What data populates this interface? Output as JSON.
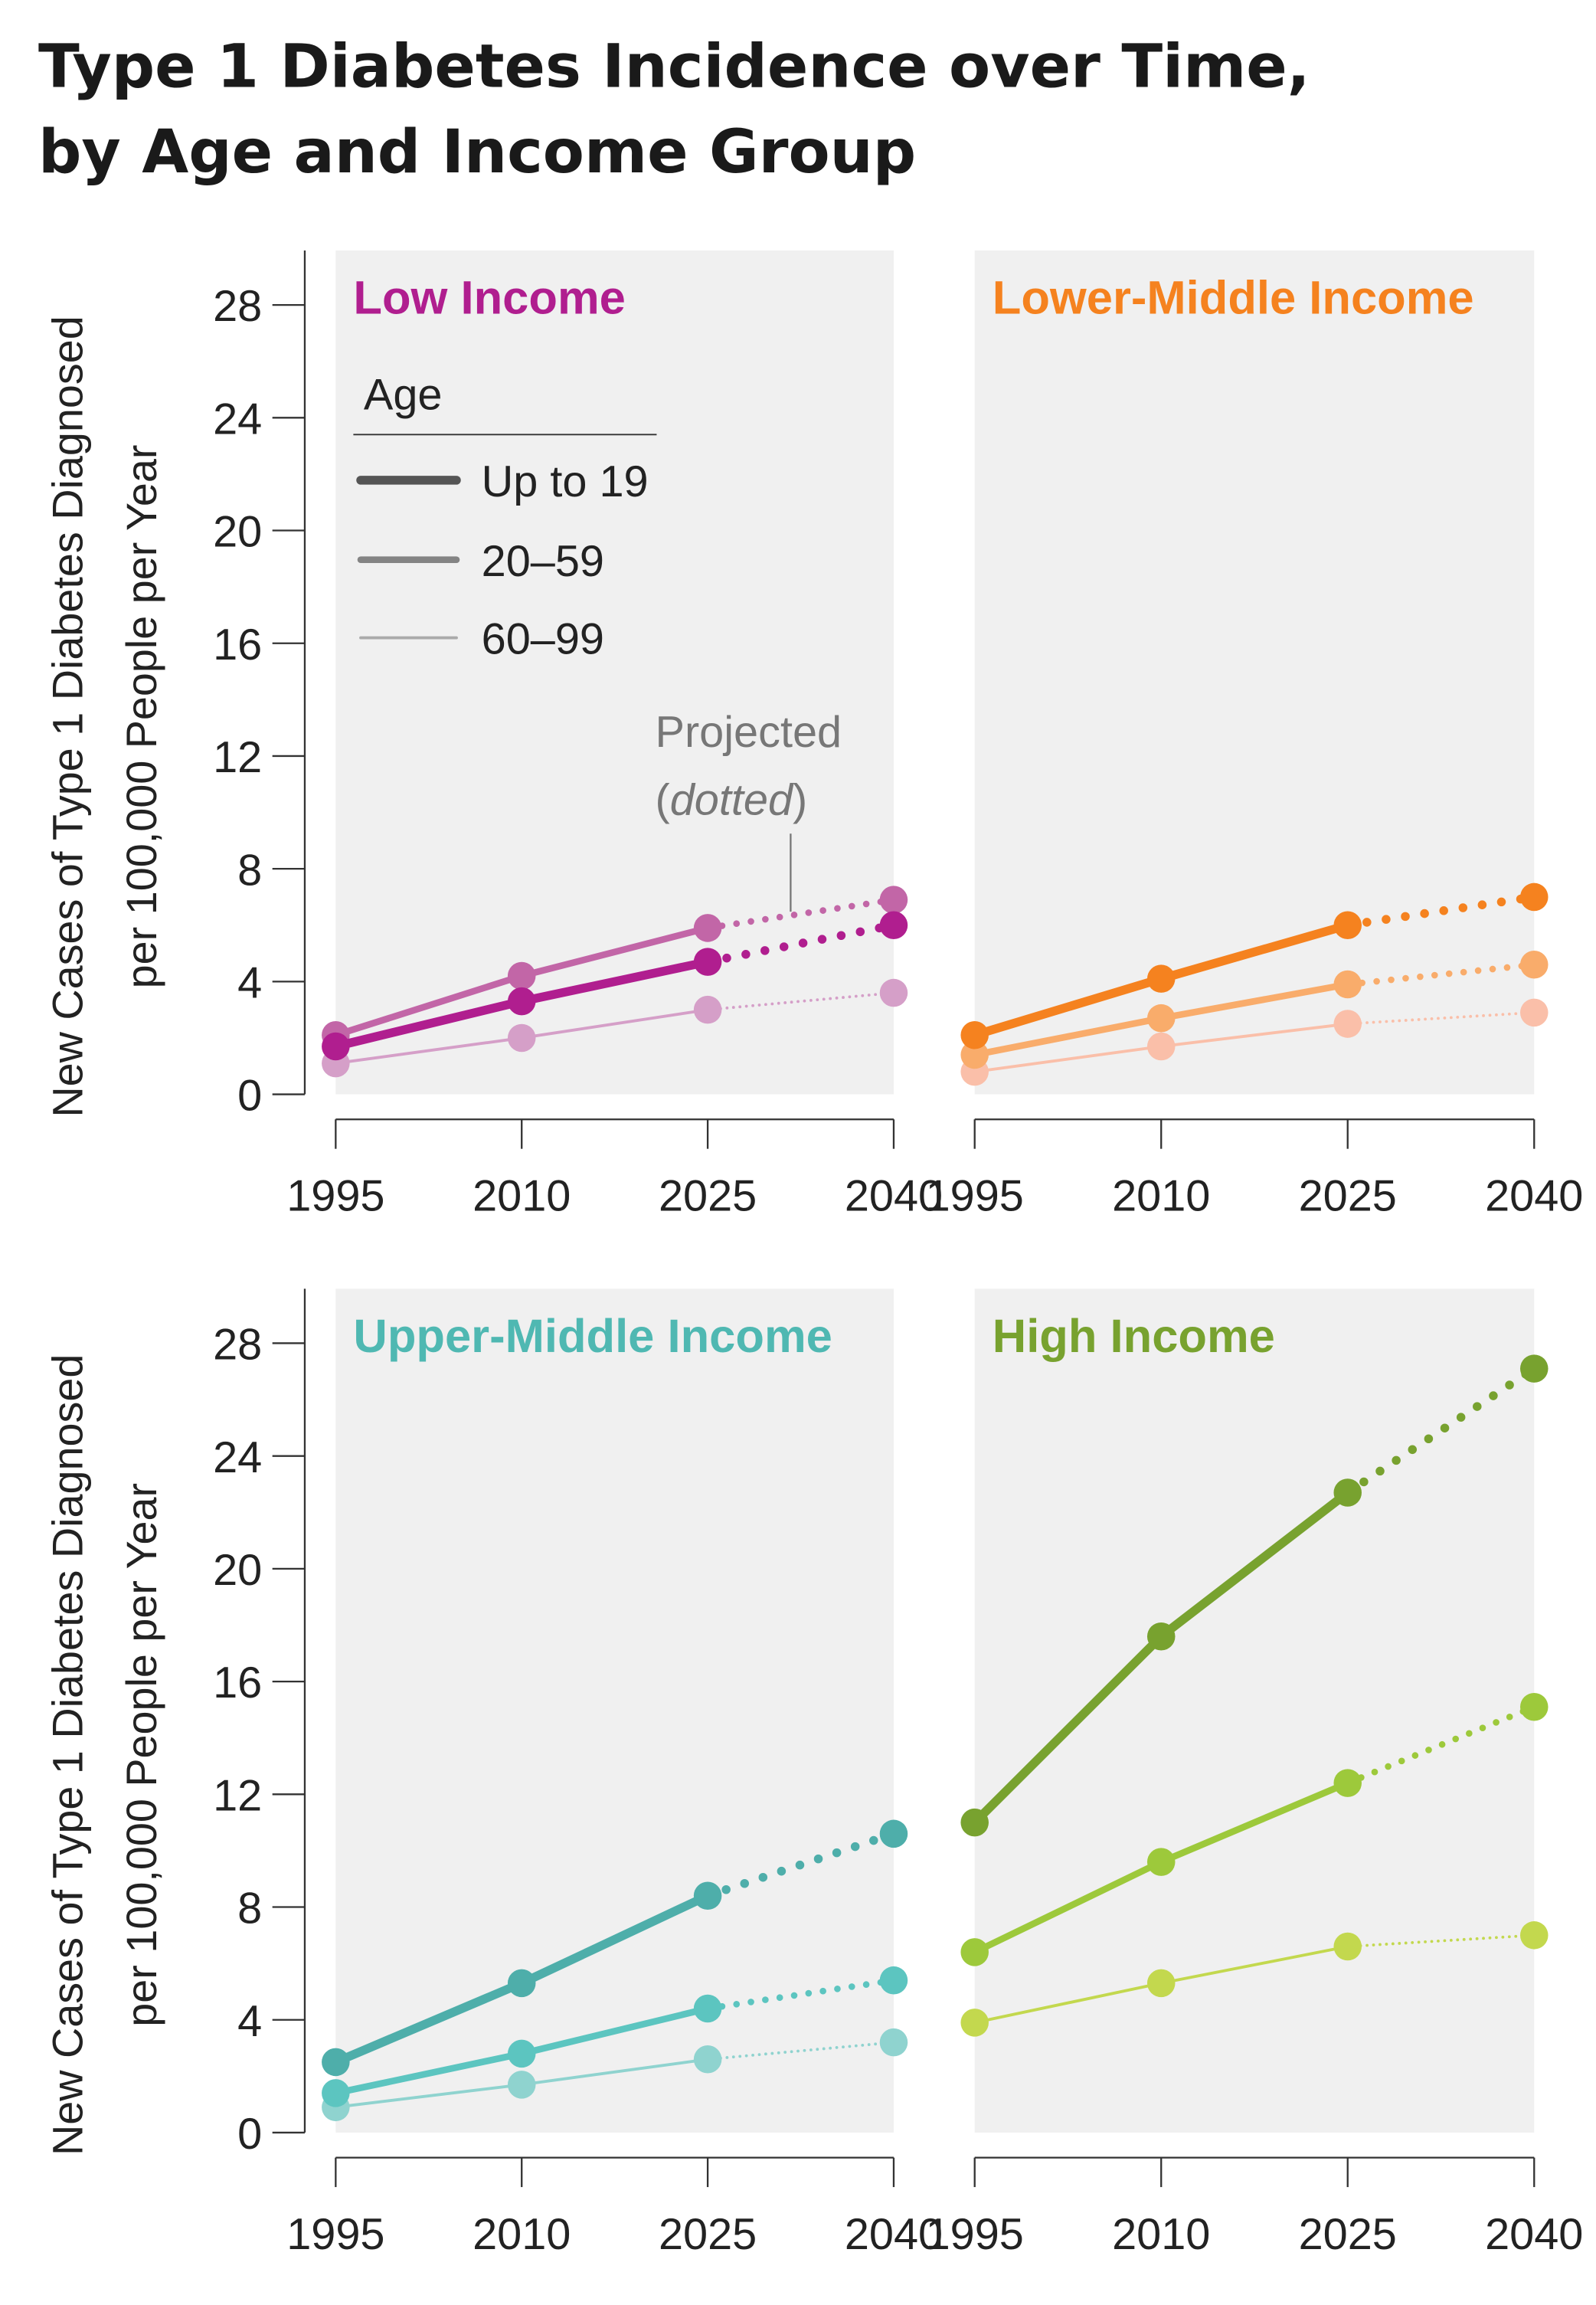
{
  "title_lines": [
    "Type 1 Diabetes Incidence over Time,",
    "by Age and Income Group"
  ],
  "chart_data": {
    "type": "line",
    "ylabel_lines": [
      "New Cases of Type 1 Diabetes Diagnosed",
      "per 100,000 People per Year"
    ],
    "x": [
      1995,
      2010,
      2025,
      2040
    ],
    "x_ticks": [
      "1995",
      "2010",
      "2025",
      "2040"
    ],
    "y_ticks": [
      "0",
      "4",
      "8",
      "12",
      "16",
      "20",
      "24",
      "28"
    ],
    "ylim": [
      0,
      30
    ],
    "projected_from": 2025,
    "legend": {
      "title": "Age",
      "entries": [
        "Up to 19",
        "20–59",
        "60–99"
      ],
      "legend_color": "#555555"
    },
    "annotation": {
      "line1": "Projected",
      "open": "(",
      "italic": "dotted",
      "close": ")"
    },
    "panels": [
      {
        "title": "Low Income",
        "color": "#b01e8f",
        "series": [
          {
            "name": "Up to 19",
            "color": "#b01e8f",
            "values": [
              1.7,
              3.3,
              4.7,
              6.0
            ]
          },
          {
            "name": "20–59",
            "color": "#c266a7",
            "values": [
              2.1,
              4.2,
              5.9,
              6.9
            ]
          },
          {
            "name": "60–99",
            "color": "#d59fc8",
            "values": [
              1.1,
              2.0,
              3.0,
              3.6
            ]
          }
        ]
      },
      {
        "title": "Lower-Middle Income",
        "color": "#f5821f",
        "series": [
          {
            "name": "Up to 19",
            "color": "#f5821f",
            "values": [
              2.1,
              4.1,
              6.0,
              7.0
            ]
          },
          {
            "name": "20–59",
            "color": "#f9ac6b",
            "values": [
              1.4,
              2.7,
              3.9,
              4.6
            ]
          },
          {
            "name": "60–99",
            "color": "#fabfa9",
            "values": [
              0.8,
              1.7,
              2.5,
              2.9
            ]
          }
        ]
      },
      {
        "title": "Upper-Middle Income",
        "color": "#4fb8b2",
        "series": [
          {
            "name": "Up to 19",
            "color": "#4eaeaa",
            "values": [
              2.5,
              5.3,
              8.4,
              10.6
            ]
          },
          {
            "name": "20–59",
            "color": "#5cc5c0",
            "values": [
              1.4,
              2.8,
              4.4,
              5.4
            ]
          },
          {
            "name": "60–99",
            "color": "#8fd3cf",
            "values": [
              0.9,
              1.7,
              2.6,
              3.2
            ]
          }
        ]
      },
      {
        "title": "High Income",
        "color": "#78a22f",
        "series": [
          {
            "name": "Up to 19",
            "color": "#78a22f",
            "values": [
              11.0,
              17.6,
              22.7,
              27.1
            ]
          },
          {
            "name": "20–59",
            "color": "#9dc93b",
            "values": [
              6.4,
              9.6,
              12.4,
              15.1
            ]
          },
          {
            "name": "60–99",
            "color": "#c3d84e",
            "values": [
              3.9,
              5.3,
              6.6,
              7.0
            ]
          }
        ]
      }
    ]
  }
}
